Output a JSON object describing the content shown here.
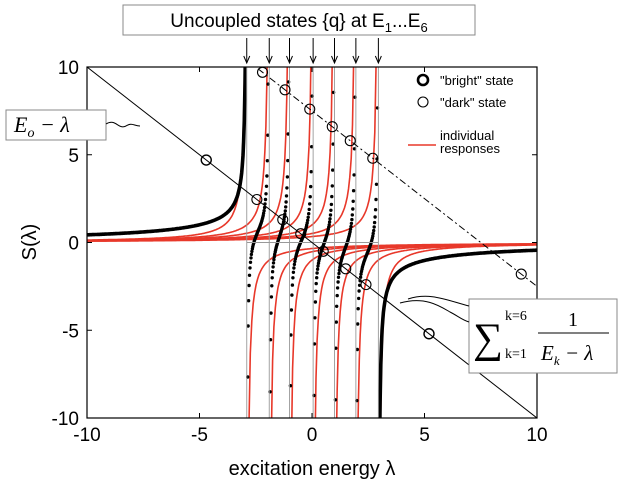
{
  "chart_data": {
    "type": "line",
    "title": "Uncoupled states {q} at E",
    "title_sub_first": "1",
    "title_ellipsis": "...E",
    "title_sub_last": "6",
    "xlabel": "excitation energy λ",
    "ylabel": "S(λ)",
    "xlim": [
      -10,
      10
    ],
    "ylim": [
      -10,
      10
    ],
    "xticks": [
      "-10",
      "-5",
      "0",
      "5",
      "10"
    ],
    "yticks": [
      "10",
      "5",
      "0",
      "-5",
      "-10"
    ],
    "grid": false,
    "legend_position": "top-right",
    "legend": {
      "bright": "\"bright\" state",
      "dark": "\"dark\" state",
      "individual": "individual responses"
    },
    "legend_individual_line1": "individual",
    "legend_individual_line2": "responses",
    "colors": {
      "individual": "#e8382a",
      "total": "#000000",
      "markers": "#000000"
    },
    "E_levels": [
      -2.9,
      -1.9,
      -1.0,
      0.05,
      1.0,
      1.95,
      2.95
    ],
    "E0": 0,
    "bright_crossings_x": [
      -4.7,
      5.2
    ],
    "dark_crossings_x": [
      -2.45,
      -1.3,
      -0.5,
      0.5,
      1.5,
      2.4
    ],
    "dashdot_intercept": 7.5,
    "dashdot_crossings_x": [
      -2.2,
      -1.2,
      -0.1,
      0.9,
      1.7,
      2.7,
      9.3
    ],
    "annot_left": {
      "E": "E",
      "sub": "o",
      "rest": " − λ"
    },
    "annot_right": {
      "k_top": "k=6",
      "k_bottom": "k=1",
      "numerator": "1",
      "den_E": "E",
      "den_sub": "k",
      "den_rest": " − λ"
    }
  }
}
